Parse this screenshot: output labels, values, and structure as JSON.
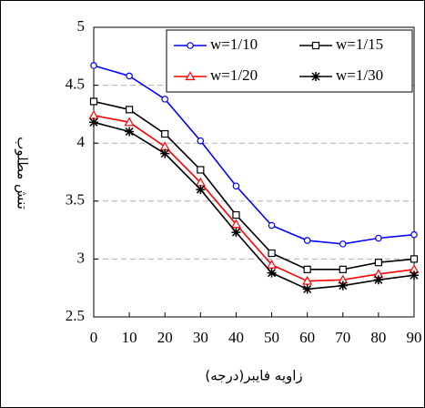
{
  "chart_data": {
    "type": "line",
    "xlabel": "زاویه فایبر(درجه)",
    "ylabel": "تنش مطلوب",
    "x": [
      0,
      10,
      20,
      30,
      40,
      50,
      60,
      70,
      80,
      90
    ],
    "xlim": [
      0,
      90
    ],
    "xticks": [
      0,
      10,
      20,
      30,
      40,
      50,
      60,
      70,
      80,
      90
    ],
    "ylim": [
      2.5,
      5
    ],
    "yticks": [
      2.5,
      3,
      3.5,
      4,
      4.5,
      5
    ],
    "grid": true,
    "legend": "upper right",
    "series": [
      {
        "name": "w=1/10",
        "color": "#0000ff",
        "marker": "circle",
        "values": [
          4.67,
          4.58,
          4.38,
          4.02,
          3.63,
          3.29,
          3.16,
          3.13,
          3.18,
          3.21
        ]
      },
      {
        "name": "w=1/15",
        "color": "#000000",
        "marker": "square",
        "values": [
          4.36,
          4.29,
          4.08,
          3.77,
          3.38,
          3.05,
          2.91,
          2.91,
          2.97,
          3.0
        ]
      },
      {
        "name": "w=1/20",
        "color": "#ff0000",
        "marker": "triangle",
        "values": [
          4.24,
          4.18,
          3.97,
          3.66,
          3.3,
          2.95,
          2.81,
          2.82,
          2.87,
          2.91
        ]
      },
      {
        "name": "w=1/30",
        "color": "#000000",
        "marker": "star",
        "values": [
          4.18,
          4.1,
          3.91,
          3.6,
          3.23,
          2.88,
          2.74,
          2.77,
          2.82,
          2.86
        ]
      }
    ]
  }
}
